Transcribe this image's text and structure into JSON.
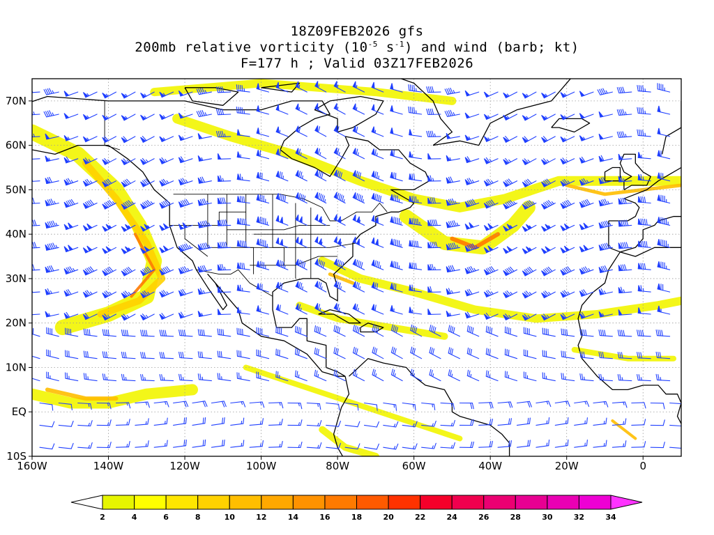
{
  "title": {
    "line1": "18Z09FEB2026 gfs",
    "line2_prefix": "200mb relative vorticity (10",
    "line2_exp1": "-5",
    "line2_mid": " s",
    "line2_exp2": "-1",
    "line2_suffix": ") and wind (barb; kt)",
    "line3": "F=177 h ; Valid 03Z17FEB2026"
  },
  "map": {
    "lon_range": [
      -160,
      10
    ],
    "lat_range": [
      -10,
      75
    ],
    "lat_labels": [
      "70N",
      "60N",
      "50N",
      "40N",
      "30N",
      "20N",
      "10N",
      "EQ",
      "10S"
    ],
    "lat_values": [
      70,
      60,
      50,
      40,
      30,
      20,
      10,
      0,
      -10
    ],
    "lon_labels": [
      "160W",
      "140W",
      "120W",
      "100W",
      "80W",
      "60W",
      "40W",
      "20W",
      "0"
    ],
    "lon_values": [
      -160,
      -140,
      -120,
      -100,
      -80,
      -60,
      -40,
      -20,
      0
    ],
    "barb_color": "#1f3fff",
    "grid_color": "#999999",
    "coast_color": "#000000"
  },
  "colorbar": {
    "labels": [
      "2",
      "4",
      "6",
      "8",
      "10",
      "12",
      "14",
      "16",
      "18",
      "20",
      "22",
      "24",
      "26",
      "28",
      "30",
      "32",
      "34"
    ],
    "colors": [
      "#e6f500",
      "#ffff00",
      "#ffe600",
      "#ffd200",
      "#ffbe00",
      "#ffa800",
      "#ff9200",
      "#ff7a00",
      "#ff5a00",
      "#ff3200",
      "#f5002a",
      "#f0004e",
      "#eb0072",
      "#e80092",
      "#ea00b4",
      "#ee00d4"
    ],
    "under_color": "#ffffff",
    "over_color": "#ff33ff"
  }
}
